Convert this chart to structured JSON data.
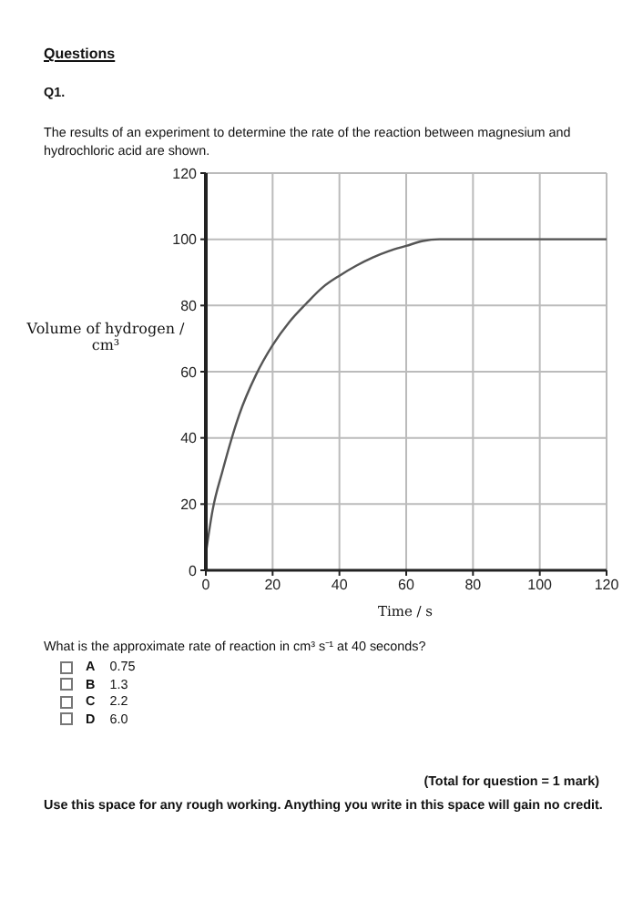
{
  "chart_data": {
    "type": "line",
    "title": "Questions",
    "subtitle": "Q1.",
    "xlabel": "Time / s",
    "ylabel": "Volume of hydrogen / cm³",
    "x": [
      0,
      2,
      5,
      10,
      15,
      20,
      25,
      30,
      35,
      40,
      45,
      50,
      55,
      60,
      65,
      70,
      80,
      100,
      120
    ],
    "series": [
      {
        "color": "#555555",
        "values": [
          5,
          18,
          30,
          47,
          59,
          68,
          75,
          80.5,
          85.5,
          89,
          92,
          94.5,
          96.5,
          98,
          99.5,
          100,
          100,
          100,
          100
        ]
      }
    ],
    "xlim": [
      0,
      120
    ],
    "xticks": [
      0,
      20,
      40,
      60,
      80,
      100,
      120
    ],
    "ylim": [
      0,
      120
    ],
    "yticks": [
      0,
      20,
      40,
      60,
      80,
      100,
      120
    ],
    "grid": true,
    "marker": "none",
    "line_style": "solid",
    "annotations": [
      "The results of an experiment to determine the rate of the reaction between magnesium and hydrochloric acid are shown.",
      "What is the approximate rate of reaction in cm³ s⁻¹ at 40 seconds?",
      "A 0.75",
      "B 1.3",
      "C 2.2",
      "D 6.0",
      "(Total for question = 1 mark)",
      "Use this space for any rough working. Anything you write in this space will gain no credit."
    ]
  }
}
